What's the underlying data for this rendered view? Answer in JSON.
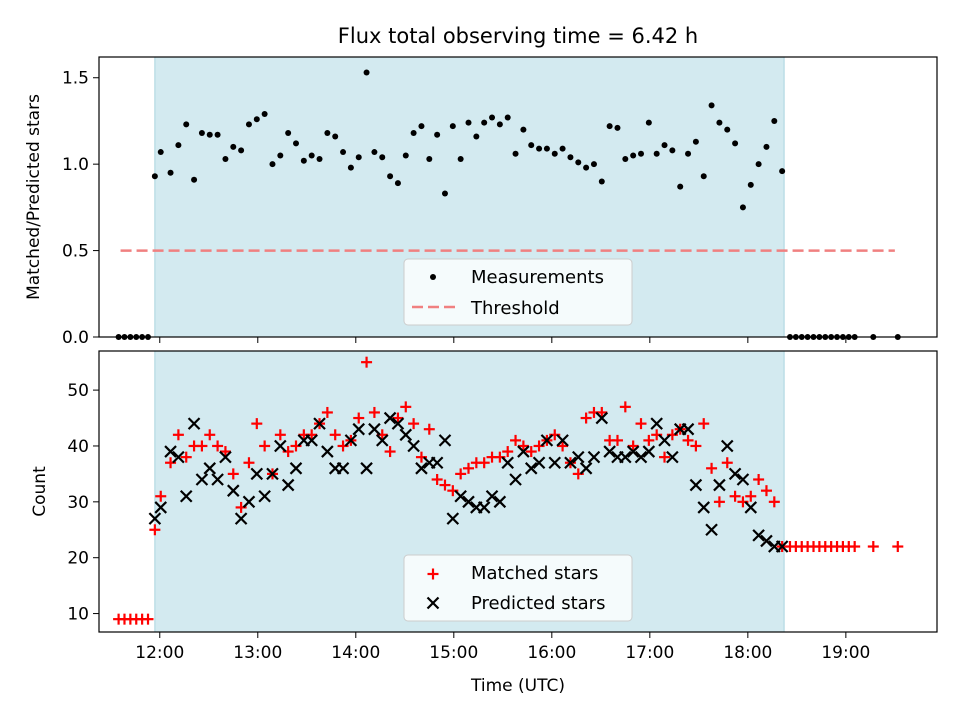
{
  "title": "Flux total observing time = 6.42 h",
  "chart_data": [
    {
      "type": "scatter",
      "ylabel": "Matched/Predicted stars",
      "xlabel": "",
      "xlim": [
        11.38,
        19.93
      ],
      "ylim": [
        0,
        1.62
      ],
      "x_ticks": [
        "12:00",
        "13:00",
        "14:00",
        "15:00",
        "16:00",
        "17:00",
        "18:00",
        "19:00"
      ],
      "y_ticks": [
        "0.0",
        "0.5",
        "1.0",
        "1.5"
      ],
      "y_tick_values": [
        0,
        0.5,
        1.0,
        1.5
      ],
      "shaded_region": [
        11.95,
        18.37
      ],
      "shade_color": "#d3eaf0",
      "legend_position": "lower center",
      "legend": {
        "measurements": "Measurements",
        "threshold": "Threshold"
      },
      "threshold": {
        "value": 0.5,
        "x_range": [
          11.6,
          19.5
        ],
        "color": "#f08080"
      },
      "series": [
        {
          "name": "Measurements",
          "color": "#000000",
          "x": [
            11.58,
            11.64,
            11.7,
            11.76,
            11.82,
            11.88,
            11.95,
            12.01,
            12.11,
            12.19,
            12.27,
            12.35,
            12.43,
            12.51,
            12.59,
            12.67,
            12.75,
            12.83,
            12.91,
            12.99,
            13.07,
            13.15,
            13.23,
            13.31,
            13.39,
            13.47,
            13.55,
            13.63,
            13.71,
            13.79,
            13.87,
            13.95,
            14.03,
            14.11,
            14.19,
            14.27,
            14.35,
            14.43,
            14.51,
            14.59,
            14.67,
            14.75,
            14.83,
            14.91,
            14.99,
            15.07,
            15.15,
            15.23,
            15.31,
            15.39,
            15.47,
            15.55,
            15.63,
            15.71,
            15.79,
            15.87,
            15.95,
            16.03,
            16.11,
            16.19,
            16.27,
            16.35,
            16.43,
            16.51,
            16.59,
            16.67,
            16.75,
            16.83,
            16.91,
            16.99,
            17.07,
            17.15,
            17.23,
            17.31,
            17.39,
            17.47,
            17.55,
            17.63,
            17.71,
            17.79,
            17.87,
            17.95,
            18.03,
            18.11,
            18.19,
            18.27,
            18.35,
            18.43,
            18.49,
            18.55,
            18.61,
            18.67,
            18.73,
            18.79,
            18.85,
            18.91,
            18.97,
            19.03,
            19.09,
            19.28,
            19.53
          ],
          "y": [
            0,
            0,
            0,
            0,
            0,
            0,
            0.93,
            1.07,
            0.95,
            1.11,
            1.23,
            0.91,
            1.18,
            1.17,
            1.17,
            1.03,
            1.1,
            1.08,
            1.23,
            1.26,
            1.29,
            1.0,
            1.05,
            1.18,
            1.12,
            1.02,
            1.05,
            1.03,
            1.18,
            1.16,
            1.07,
            0.98,
            1.04,
            1.53,
            1.07,
            1.04,
            0.93,
            0.89,
            1.05,
            1.18,
            1.22,
            1.03,
            1.17,
            0.83,
            1.22,
            1.03,
            1.24,
            1.16,
            1.24,
            1.27,
            1.23,
            1.27,
            1.06,
            1.2,
            1.11,
            1.09,
            1.09,
            1.06,
            1.09,
            1.04,
            1.01,
            0.98,
            1.0,
            0.9,
            1.22,
            1.21,
            1.03,
            1.05,
            1.06,
            1.24,
            1.06,
            1.11,
            1.08,
            0.87,
            1.06,
            1.13,
            0.93,
            1.34,
            1.24,
            1.2,
            1.12,
            0.75,
            0.88,
            1.0,
            1.1,
            1.25,
            0.96,
            0,
            0,
            0,
            0,
            0,
            0,
            0,
            0,
            0,
            0,
            0,
            0,
            0,
            0
          ]
        }
      ]
    },
    {
      "type": "scatter",
      "ylabel": "Count",
      "xlabel": "Time (UTC)",
      "xlim": [
        11.38,
        19.93
      ],
      "ylim": [
        6.7,
        57
      ],
      "x_ticks": [
        "12:00",
        "13:00",
        "14:00",
        "15:00",
        "16:00",
        "17:00",
        "18:00",
        "19:00"
      ],
      "y_ticks": [
        "10",
        "20",
        "30",
        "40",
        "50"
      ],
      "y_tick_values": [
        10,
        20,
        30,
        40,
        50
      ],
      "shaded_region": [
        11.95,
        18.37
      ],
      "shade_color": "#d3eaf0",
      "legend_position": "lower center",
      "series": [
        {
          "name": "Matched stars",
          "color": "#ff0000",
          "marker": "plus",
          "x": [
            11.58,
            11.64,
            11.7,
            11.76,
            11.82,
            11.88,
            11.95,
            12.01,
            12.11,
            12.19,
            12.27,
            12.35,
            12.43,
            12.51,
            12.59,
            12.67,
            12.75,
            12.83,
            12.91,
            12.99,
            13.07,
            13.15,
            13.23,
            13.31,
            13.39,
            13.47,
            13.55,
            13.63,
            13.71,
            13.79,
            13.87,
            13.95,
            14.03,
            14.11,
            14.19,
            14.27,
            14.35,
            14.43,
            14.51,
            14.59,
            14.67,
            14.75,
            14.83,
            14.91,
            14.99,
            15.07,
            15.15,
            15.23,
            15.31,
            15.39,
            15.47,
            15.55,
            15.63,
            15.71,
            15.79,
            15.87,
            15.95,
            16.03,
            16.11,
            16.19,
            16.27,
            16.35,
            16.43,
            16.51,
            16.59,
            16.67,
            16.75,
            16.83,
            16.91,
            16.99,
            17.07,
            17.15,
            17.23,
            17.31,
            17.39,
            17.47,
            17.55,
            17.63,
            17.71,
            17.79,
            17.87,
            17.95,
            18.03,
            18.11,
            18.19,
            18.27,
            18.35,
            18.43,
            18.49,
            18.55,
            18.61,
            18.67,
            18.73,
            18.79,
            18.85,
            18.91,
            18.97,
            19.03,
            19.09,
            19.28,
            19.53
          ],
          "y": [
            9,
            9,
            9,
            9,
            9,
            9,
            25,
            31,
            37,
            42,
            38,
            40,
            40,
            42,
            40,
            39,
            35,
            29,
            37,
            44,
            40,
            35,
            42,
            39,
            40,
            42,
            42,
            44,
            46,
            42,
            40,
            41,
            45,
            55,
            46,
            42,
            39,
            45,
            47,
            44,
            38,
            43,
            34,
            33,
            32,
            35,
            36,
            37,
            37,
            38,
            38,
            39,
            41,
            40,
            39,
            40,
            41,
            42,
            40,
            37,
            35,
            45,
            46,
            46,
            41,
            41,
            47,
            40,
            44,
            41,
            42,
            38,
            42,
            43,
            41,
            40,
            44,
            36,
            30,
            37,
            31,
            30,
            31,
            34,
            32,
            30,
            22,
            22,
            22,
            22,
            22,
            22,
            22,
            22,
            22,
            22,
            22,
            22,
            22,
            22,
            22
          ]
        },
        {
          "name": "Predicted stars",
          "color": "#000000",
          "marker": "x",
          "x": [
            11.95,
            12.01,
            12.11,
            12.19,
            12.27,
            12.35,
            12.43,
            12.51,
            12.59,
            12.67,
            12.75,
            12.83,
            12.91,
            12.99,
            13.07,
            13.15,
            13.23,
            13.31,
            13.39,
            13.47,
            13.55,
            13.63,
            13.71,
            13.79,
            13.87,
            13.95,
            14.03,
            14.11,
            14.19,
            14.27,
            14.35,
            14.43,
            14.51,
            14.59,
            14.67,
            14.75,
            14.83,
            14.91,
            14.99,
            15.07,
            15.15,
            15.23,
            15.31,
            15.39,
            15.47,
            15.55,
            15.63,
            15.71,
            15.79,
            15.87,
            15.95,
            16.03,
            16.11,
            16.19,
            16.27,
            16.35,
            16.43,
            16.51,
            16.59,
            16.67,
            16.75,
            16.83,
            16.91,
            16.99,
            17.07,
            17.15,
            17.23,
            17.31,
            17.39,
            17.47,
            17.55,
            17.63,
            17.71,
            17.79,
            17.87,
            17.95,
            18.03,
            18.11,
            18.19,
            18.27,
            18.35
          ],
          "y": [
            27,
            29,
            39,
            38,
            31,
            44,
            34,
            36,
            34,
            38,
            32,
            27,
            30,
            35,
            31,
            35,
            40,
            33,
            36,
            41,
            41,
            44,
            39,
            36,
            36,
            41,
            43,
            36,
            43,
            41,
            45,
            44,
            42,
            40,
            36,
            37,
            37,
            41,
            27,
            31,
            30,
            29,
            29,
            31,
            30,
            37,
            34,
            39,
            36,
            37,
            41,
            37,
            41,
            37,
            38,
            36,
            38,
            45,
            39,
            38,
            38,
            39,
            38,
            39,
            44,
            41,
            38,
            43,
            43,
            33,
            29,
            25,
            33,
            40,
            35,
            34,
            29,
            24,
            23,
            22,
            22
          ]
        }
      ]
    }
  ]
}
